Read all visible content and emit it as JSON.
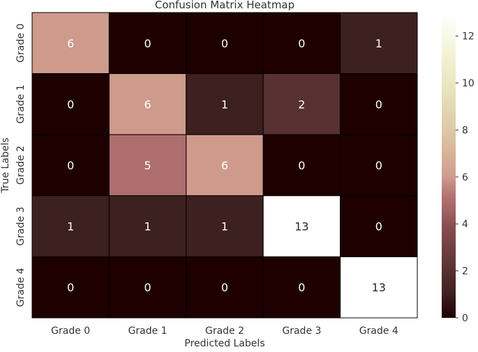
{
  "chart_data": {
    "type": "heatmap",
    "title": "Confusion Matrix Heatmap",
    "xlabel": "Predicted Labels",
    "ylabel": "True Labels",
    "x_categories": [
      "Grade 0",
      "Grade 1",
      "Grade 2",
      "Grade 3",
      "Grade 4"
    ],
    "y_categories": [
      "Grade 0",
      "Grade 1",
      "Grade 2",
      "Grade 3",
      "Grade 4"
    ],
    "values": [
      [
        6,
        0,
        0,
        0,
        1
      ],
      [
        0,
        6,
        1,
        2,
        0
      ],
      [
        0,
        5,
        6,
        0,
        0
      ],
      [
        1,
        1,
        1,
        13,
        0
      ],
      [
        0,
        0,
        0,
        0,
        13
      ]
    ],
    "colorbar": {
      "vmin": 0,
      "vmax": 13,
      "ticks": [
        0,
        2,
        4,
        6,
        8,
        10,
        12
      ],
      "colormap": "pink",
      "stops": [
        [
          0.0,
          "#1e0000"
        ],
        [
          0.08,
          "#3e2121"
        ],
        [
          0.16,
          "#5a3232"
        ],
        [
          0.3,
          "#8a4f4f"
        ],
        [
          0.4,
          "#b67474"
        ],
        [
          0.47,
          "#d09f8f"
        ],
        [
          0.6,
          "#dcc5a3"
        ],
        [
          0.75,
          "#e8e4be"
        ],
        [
          0.88,
          "#f4f4da"
        ],
        [
          1.0,
          "#ffffff"
        ]
      ]
    },
    "annotations": true,
    "grid": false
  }
}
